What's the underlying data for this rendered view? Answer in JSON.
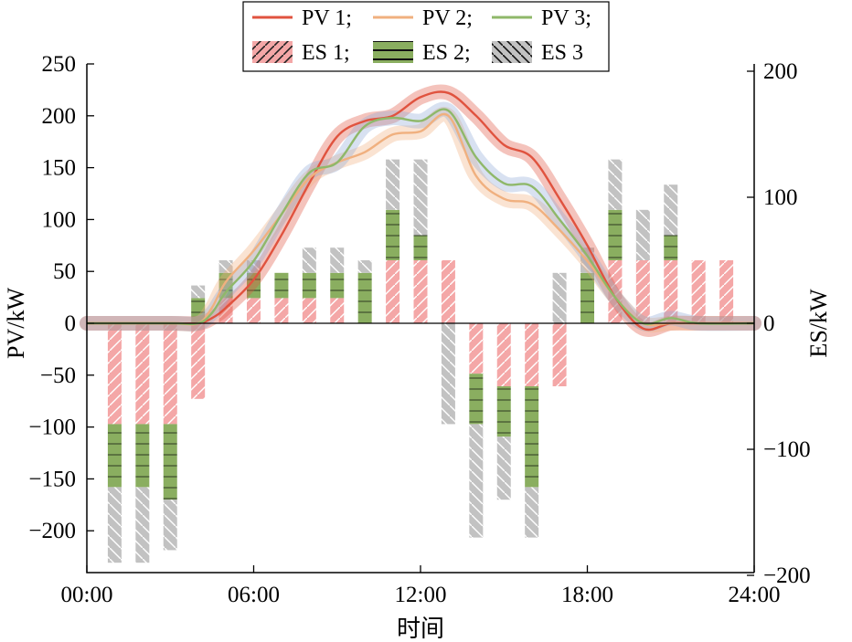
{
  "chart_data": {
    "type": "bar",
    "xlabel": "时间",
    "ylabel_left": "PV/kW",
    "ylabel_right": "ES/kW",
    "x_ticks": [
      "00:00",
      "06:00",
      "12:00",
      "18:00",
      "24:00"
    ],
    "y_left_ticks": [
      250,
      200,
      150,
      100,
      50,
      0,
      -50,
      -100,
      -150,
      -200
    ],
    "y_right_ticks": [
      200,
      100,
      0,
      -100,
      -200
    ],
    "ylim_left": [
      -240,
      250
    ],
    "ylim_right": [
      -200,
      200
    ],
    "xlim_hours": [
      0,
      24
    ],
    "legend_position": "top-center",
    "legend": [
      "PV 1;",
      "PV 2;",
      "PV 3;",
      "ES 1;",
      "ES 2;",
      "ES 3"
    ],
    "colors": {
      "PV 1": "#e0533f",
      "PV 2": "#f0b07f",
      "PV 3": "#8fb86a",
      "ES 1": "#f4a7a7",
      "ES 2": "#8aae60",
      "ES 3": "#c2c2c2"
    },
    "hours": [
      1,
      2,
      3,
      4,
      5,
      6,
      7,
      8,
      9,
      10,
      11,
      12,
      13,
      14,
      15,
      16,
      17,
      18,
      19,
      20,
      21,
      22,
      23
    ],
    "pv_series": [
      {
        "name": "PV 1",
        "x": [
          0,
          3,
          4,
          4.5,
          5,
          6,
          7,
          8,
          9,
          10,
          11,
          12,
          13,
          14,
          15,
          16,
          17,
          18,
          19,
          20,
          21,
          22,
          24
        ],
        "y": [
          0,
          0,
          0,
          5,
          15,
          42,
          85,
          135,
          180,
          195,
          200,
          218,
          222,
          200,
          172,
          160,
          120,
          75,
          25,
          -5,
          0,
          0,
          0
        ]
      },
      {
        "name": "PV 2",
        "x": [
          0,
          3,
          4,
          4.5,
          5,
          6,
          7,
          8,
          9,
          10,
          11,
          12,
          13,
          14,
          15,
          16,
          17,
          18,
          19,
          20,
          21,
          22,
          24
        ],
        "y": [
          0,
          0,
          0,
          15,
          40,
          70,
          105,
          140,
          155,
          165,
          182,
          185,
          200,
          142,
          120,
          115,
          90,
          60,
          25,
          0,
          0,
          0,
          0
        ]
      },
      {
        "name": "PV 3",
        "x": [
          0,
          3,
          4,
          4.5,
          5,
          6,
          7,
          8,
          9,
          10,
          11,
          12,
          13,
          14,
          15,
          16,
          17,
          18,
          19,
          20,
          21,
          22,
          24
        ],
        "y": [
          0,
          0,
          0,
          10,
          30,
          60,
          105,
          145,
          155,
          190,
          198,
          195,
          205,
          160,
          135,
          132,
          100,
          65,
          25,
          0,
          5,
          0,
          0
        ]
      }
    ],
    "es_series": [
      {
        "name": "ES 1",
        "values": [
          -80,
          -80,
          -80,
          -60,
          20,
          20,
          20,
          20,
          20,
          0,
          50,
          50,
          50,
          -40,
          -50,
          -50,
          -50,
          0,
          50,
          50,
          50,
          50,
          50
        ]
      },
      {
        "name": "ES 2",
        "values": [
          -50,
          -50,
          -60,
          20,
          20,
          20,
          20,
          20,
          20,
          40,
          40,
          20,
          0,
          -40,
          -40,
          -80,
          0,
          40,
          40,
          0,
          20,
          0,
          0
        ]
      },
      {
        "name": "ES 3",
        "values": [
          -60,
          -60,
          -40,
          10,
          10,
          10,
          0,
          20,
          20,
          10,
          40,
          60,
          -80,
          -90,
          -50,
          -40,
          40,
          20,
          40,
          40,
          40,
          0,
          0
        ]
      }
    ]
  }
}
